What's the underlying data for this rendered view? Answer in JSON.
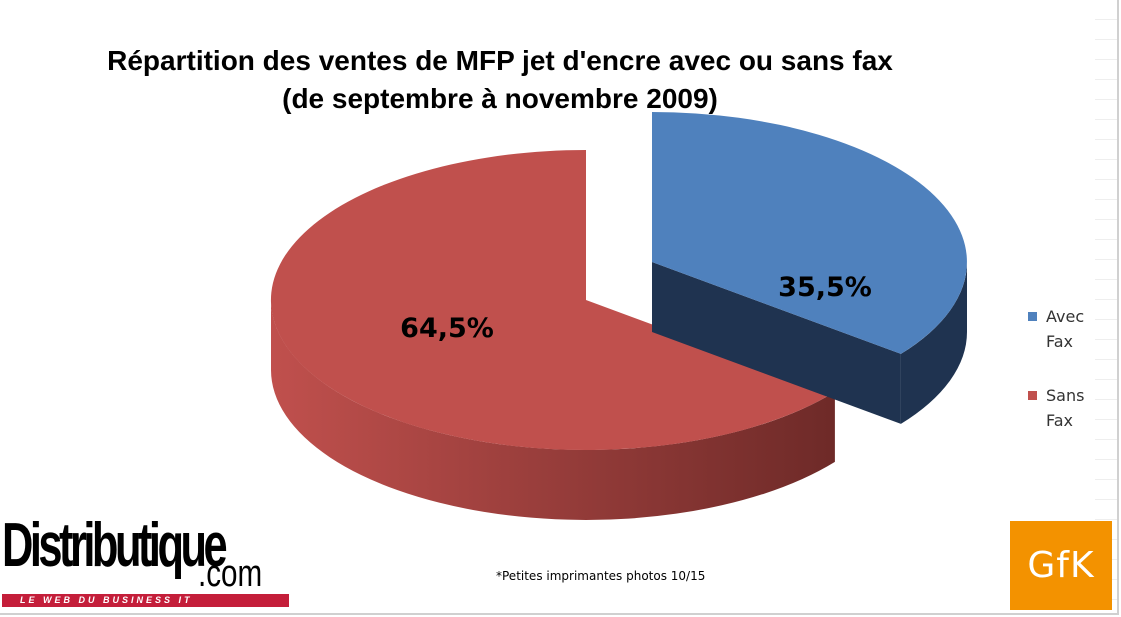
{
  "chart_data": {
    "type": "pie",
    "title_line1": "Répartition des ventes de MFP jet d'encre  avec ou sans fax",
    "title_line2": "(de septembre à novembre 2009)",
    "series": [
      {
        "name": "Avec Fax",
        "value": 35.5,
        "label": "35,5%",
        "color": "#4f81bd",
        "side_color": "#1f3350"
      },
      {
        "name": "Sans Fax",
        "value": 64.5,
        "label": "64,5%",
        "color": "#c0504d",
        "side_color": "#6e2a28"
      }
    ],
    "legend": [
      {
        "line1": "Avec",
        "line2": "Fax",
        "color": "#4f81bd"
      },
      {
        "line1": "Sans",
        "line2": "Fax",
        "color": "#c0504d"
      }
    ],
    "legend_placement": "right",
    "style": "3d-exploded"
  },
  "footnote": "*Petites imprimantes photos  10/15",
  "logos": {
    "distributique_main": "Distributique",
    "distributique_com": ".com",
    "distributique_tagline": "LE WEB DU BUSINESS IT",
    "gfk": "GfK"
  }
}
